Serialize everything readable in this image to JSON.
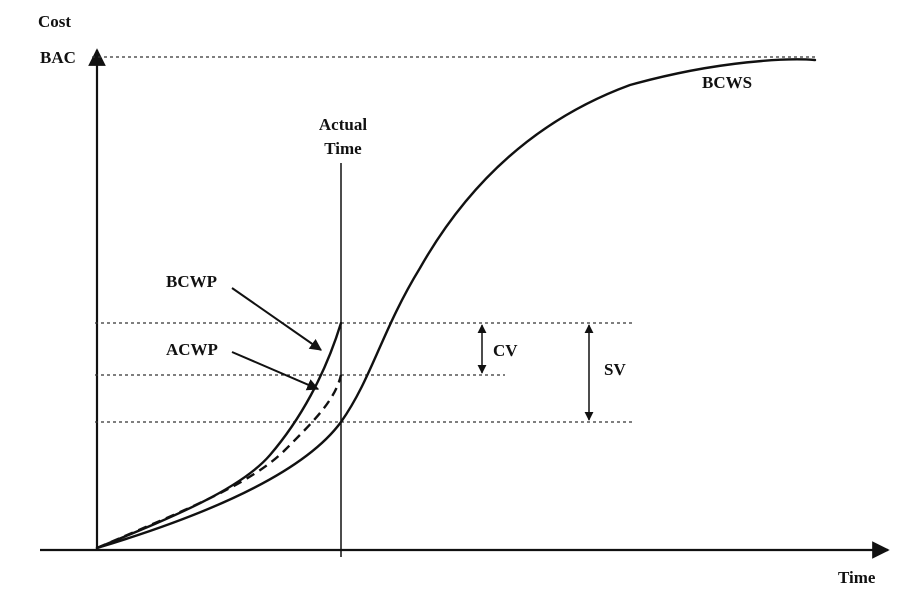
{
  "diagram": {
    "labels": {
      "y_axis": "Cost",
      "x_axis": "Time",
      "bac": "BAC",
      "bcws": "BCWS",
      "actual_time_line1": "Actual",
      "actual_time_line2": "Time",
      "bcwp": "BCWP",
      "acwp": "ACWP",
      "cv": "CV",
      "sv": "SV"
    }
  }
}
